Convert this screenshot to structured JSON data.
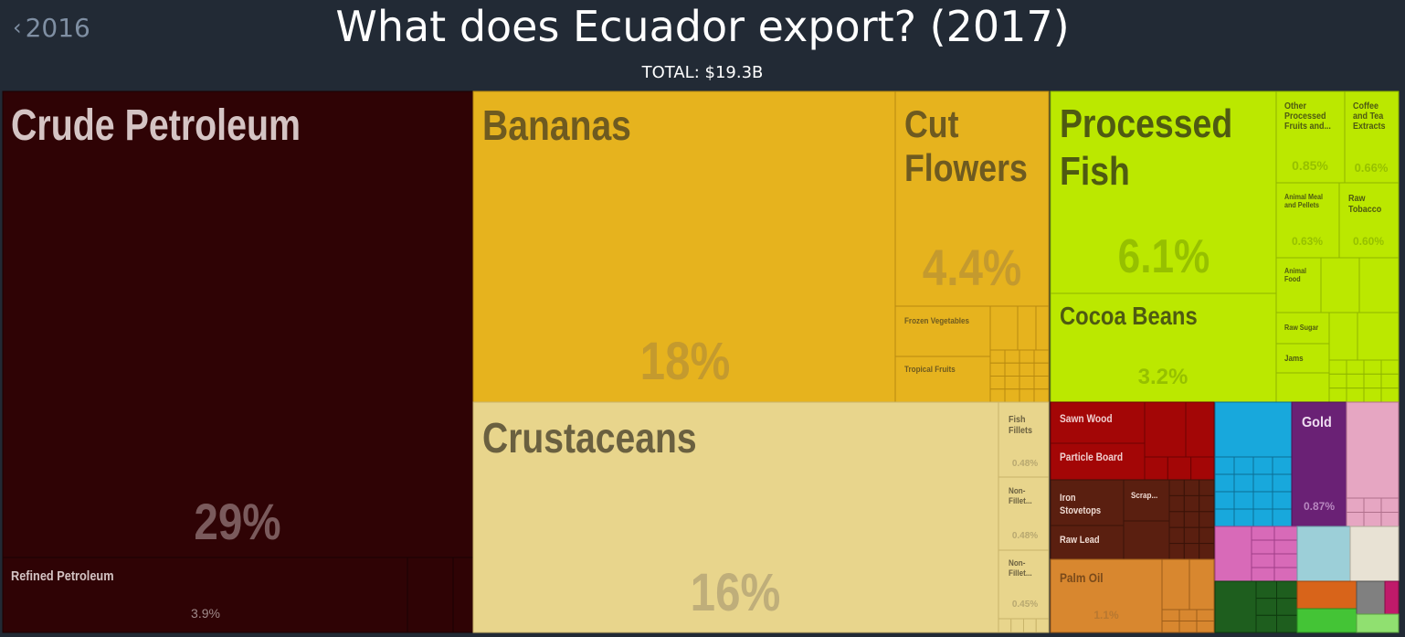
{
  "nav": {
    "back_label": "2016"
  },
  "header": {
    "title": "What does Ecuador export? (2017)",
    "total": "TOTAL: $19.3B"
  },
  "chart_data": {
    "type": "treemap",
    "title": "What does Ecuador export? (2017)",
    "subtitle": "TOTAL: $19.3B",
    "items": [
      {
        "name": "Crude Petroleum",
        "share": 29,
        "share_label": "29%",
        "color": "#2f0305"
      },
      {
        "name": "Refined Petroleum",
        "share": 3.9,
        "share_label": "3.9%",
        "color": "#2f0305"
      },
      {
        "name": "Bananas",
        "share": 18,
        "share_label": "18%",
        "color": "#e6b31e"
      },
      {
        "name": "Cut Flowers",
        "share": 4.4,
        "share_label": "4.4%",
        "color": "#e6b31e"
      },
      {
        "name": "Frozen Vegetables",
        "share_label": "",
        "color": "#e6b31e"
      },
      {
        "name": "Tropical Fruits",
        "share_label": "",
        "color": "#e6b31e"
      },
      {
        "name": "Crustaceans",
        "share": 16,
        "share_label": "16%",
        "color": "#e8d58c"
      },
      {
        "name": "Fish Fillets",
        "share": 0.48,
        "share_label": "0.48%",
        "color": "#e8d58c"
      },
      {
        "name": "Non-Fillet...",
        "share": 0.48,
        "share_label": "0.48%",
        "color": "#e8d58c"
      },
      {
        "name": "Non-Fillet...",
        "share": 0.45,
        "share_label": "0.45%",
        "color": "#e8d58c"
      },
      {
        "name": "Processed Fish",
        "share": 6.1,
        "share_label": "6.1%",
        "color": "#bbe800"
      },
      {
        "name": "Cocoa Beans",
        "share": 3.2,
        "share_label": "3.2%",
        "color": "#bbe800"
      },
      {
        "name": "Other Processed Fruits and...",
        "share": 0.85,
        "share_label": "0.85%",
        "color": "#bbe800"
      },
      {
        "name": "Coffee and Tea Extracts",
        "share": 0.66,
        "share_label": "0.66%",
        "color": "#bbe800"
      },
      {
        "name": "Animal Meal and Pellets",
        "share": 0.63,
        "share_label": "0.63%",
        "color": "#bbe800"
      },
      {
        "name": "Raw Tobacco",
        "share": 0.6,
        "share_label": "0.60%",
        "color": "#bbe800"
      },
      {
        "name": "Animal Food",
        "share_label": "",
        "color": "#bbe800"
      },
      {
        "name": "Raw Sugar",
        "share_label": "",
        "color": "#bbe800"
      },
      {
        "name": "Jams",
        "share_label": "",
        "color": "#bbe800"
      },
      {
        "name": "Sawn Wood",
        "share_label": "",
        "color": "#a30606"
      },
      {
        "name": "Particle Board",
        "share_label": "",
        "color": "#a30606"
      },
      {
        "name": "Iron Stovetops",
        "share_label": "",
        "color": "#5a1f10"
      },
      {
        "name": "Scrap...",
        "share_label": "",
        "color": "#5a1f10"
      },
      {
        "name": "Raw Lead",
        "share_label": "",
        "color": "#5a1f10"
      },
      {
        "name": "Palm Oil",
        "share": 1.1,
        "share_label": "1.1%",
        "color": "#d8872f"
      },
      {
        "name": "Gold",
        "share": 0.87,
        "share_label": "0.87%",
        "color": "#6a2175"
      }
    ]
  }
}
